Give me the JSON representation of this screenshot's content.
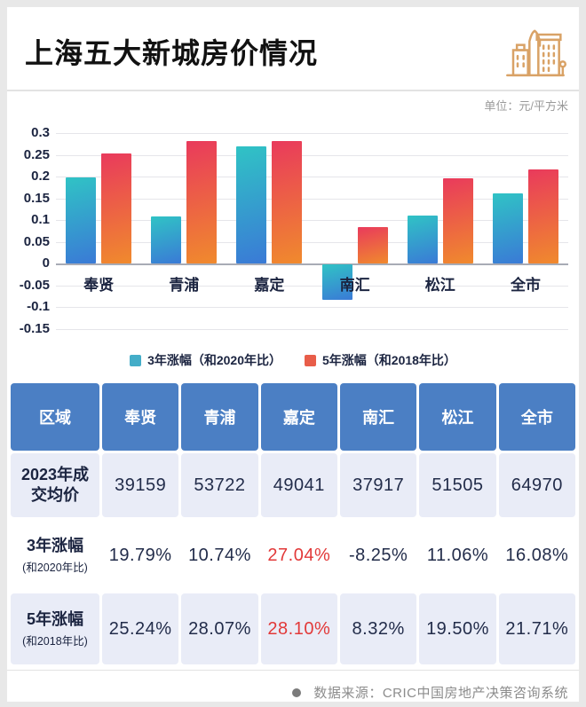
{
  "header": {
    "title": "上海五大新城房价情况"
  },
  "chart": {
    "unit_label": "单位：元/平方米"
  },
  "chart_data": {
    "type": "bar",
    "categories": [
      "奉贤",
      "青浦",
      "嘉定",
      "南汇",
      "松江",
      "全市"
    ],
    "series": [
      {
        "key": "3yr",
        "name": "3年涨幅（和2020年比）",
        "color_start": "#30c3c5",
        "color_end": "#3a7ad6",
        "legend_color": "#44adc8",
        "values": [
          0.1979,
          0.1074,
          0.2704,
          -0.0825,
          0.1106,
          0.1608
        ]
      },
      {
        "key": "5yr",
        "name": "5年涨幅（和2018年比）",
        "color_start": "#e93a5c",
        "color_end": "#f08a2d",
        "legend_color": "#e85d49",
        "values": [
          0.2524,
          0.2807,
          0.281,
          0.0832,
          0.195,
          0.2171
        ]
      }
    ],
    "ylim": [
      -0.15,
      0.3
    ],
    "ytick_step": 0.05,
    "yticks": [
      "0.3",
      "0.25",
      "0.2",
      "0.15",
      "0.1",
      "0.05",
      "0",
      "-0.05",
      "-0.1",
      "-0.15"
    ],
    "grid": true,
    "legend_position": "bottom"
  },
  "table": {
    "headers": [
      "区域",
      "奉贤",
      "青浦",
      "嘉定",
      "南汇",
      "松江",
      "全市"
    ],
    "rows": [
      {
        "label": "2023年成交均价",
        "sublabel": "",
        "values": [
          "39159",
          "53722",
          "49041",
          "37917",
          "51505",
          "64970"
        ]
      },
      {
        "label": "3年涨幅",
        "sublabel": "(和2020年比)",
        "values": [
          "19.79%",
          "10.74%",
          "27.04%",
          "-8.25%",
          "11.06%",
          "16.08%"
        ]
      },
      {
        "label": "5年涨幅",
        "sublabel": "(和2018年比)",
        "values": [
          "25.24%",
          "28.07%",
          "28.10%",
          "8.32%",
          "19.50%",
          "21.71%"
        ]
      }
    ]
  },
  "footer": {
    "source": "数据来源：CRIC中国房地产决策咨询系统"
  },
  "colors": {
    "page_bg": "#e8e8e8",
    "card_bg": "#ffffff",
    "title_text": "#111111",
    "header_blue": "#4b7fc4",
    "row_lavender": "#e9ecf7",
    "value_text": "#222c4a",
    "highlight_red": "#e23939",
    "muted_gray": "#8c8c8c",
    "icon_tan": "#d9a266",
    "grid_line": "#e5e5ea",
    "zero_axis": "#a8abb5"
  }
}
